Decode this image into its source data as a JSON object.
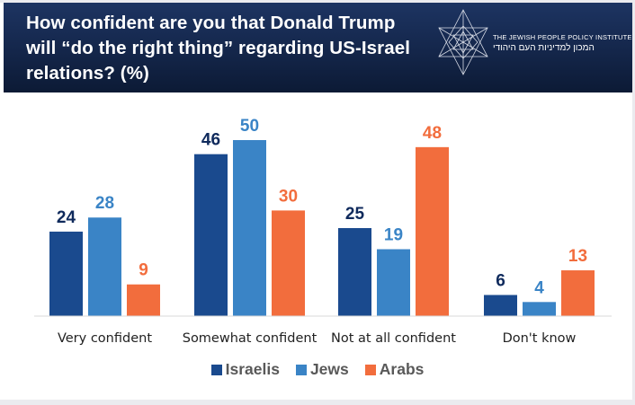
{
  "header": {
    "title": "How confident are you that Donald Trump will “do the right thing” regarding US-Israel relations? (%)",
    "logo": {
      "icon": "star-of-david-icon",
      "name_en": "THE JEWISH PEOPLE POLICY INSTITUTE",
      "name_he": "המכון למדיניות העם היהודי"
    }
  },
  "chart_data": {
    "type": "bar",
    "title": "How confident are you that Donald Trump will “do the right thing” regarding US-Israel relations? (%)",
    "xlabel": "",
    "ylabel": "",
    "ylim": [
      0,
      50
    ],
    "grid": false,
    "legend_position": "bottom",
    "categories": [
      "Very confident",
      "Somewhat confident",
      "Not at all confident",
      "Don't know"
    ],
    "series": [
      {
        "name": "Israelis",
        "color": "#1a4a8e",
        "label_color": "#0f2a5c",
        "values": [
          24,
          46,
          25,
          6
        ]
      },
      {
        "name": "Jews",
        "color": "#3a84c6",
        "label_color": "#3a84c6",
        "values": [
          28,
          50,
          19,
          4
        ]
      },
      {
        "name": "Arabs",
        "color": "#f26d3d",
        "label_color": "#f26d3d",
        "values": [
          9,
          30,
          48,
          13
        ]
      }
    ]
  }
}
